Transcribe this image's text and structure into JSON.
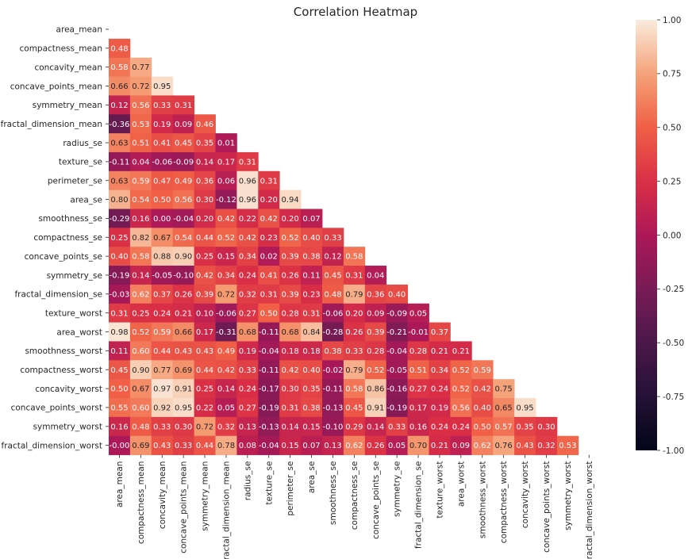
{
  "chart_data": {
    "type": "heatmap",
    "title": "Correlation Heatmap",
    "xlabel": "",
    "ylabel": "",
    "mask": "upper-triangle",
    "labels": [
      "area_mean",
      "compactness_mean",
      "concavity_mean",
      "concave_points_mean",
      "symmetry_mean",
      "fractal_dimension_mean",
      "radius_se",
      "texture_se",
      "perimeter_se",
      "area_se",
      "smoothness_se",
      "compactness_se",
      "concave_points_se",
      "symmetry_se",
      "fractal_dimension_se",
      "texture_worst",
      "area_worst",
      "smoothness_worst",
      "compactness_worst",
      "concavity_worst",
      "concave_points_worst",
      "symmetry_worst",
      "fractal_dimension_worst"
    ],
    "lower_triangle_values": [
      [],
      [
        "0.48"
      ],
      [
        "0.58",
        "0.77"
      ],
      [
        "0.66",
        "0.72",
        "0.95"
      ],
      [
        "0.12",
        "0.56",
        "0.33",
        "0.31"
      ],
      [
        "-0.36",
        "0.53",
        "0.19",
        "0.09",
        "0.46"
      ],
      [
        "0.63",
        "0.51",
        "0.41",
        "0.45",
        "0.35",
        "0.01"
      ],
      [
        "-0.11",
        "0.04",
        "-0.06",
        "-0.09",
        "0.14",
        "0.17",
        "0.31"
      ],
      [
        "0.63",
        "0.59",
        "0.47",
        "0.49",
        "0.36",
        "0.06",
        "0.96",
        "0.31"
      ],
      [
        "0.80",
        "0.54",
        "0.50",
        "0.56",
        "0.30",
        "-0.12",
        "0.96",
        "0.20",
        "0.94"
      ],
      [
        "-0.29",
        "0.16",
        "0.00",
        "-0.04",
        "0.20",
        "0.42",
        "0.22",
        "0.42",
        "0.20",
        "0.07"
      ],
      [
        "0.25",
        "0.82",
        "0.67",
        "0.54",
        "0.44",
        "0.52",
        "0.42",
        "0.23",
        "0.52",
        "0.40",
        "0.33"
      ],
      [
        "0.40",
        "0.58",
        "0.88",
        "0.90",
        "0.25",
        "0.15",
        "0.34",
        "0.02",
        "0.39",
        "0.38",
        "0.12",
        "0.58"
      ],
      [
        "-0.19",
        "0.14",
        "-0.05",
        "-0.10",
        "0.42",
        "0.34",
        "0.24",
        "0.41",
        "0.26",
        "0.11",
        "0.45",
        "0.31",
        "0.04"
      ],
      [
        "-0.03",
        "0.62",
        "0.37",
        "0.26",
        "0.39",
        "0.72",
        "0.32",
        "0.31",
        "0.39",
        "0.23",
        "0.48",
        "0.79",
        "0.36",
        "0.40"
      ],
      [
        "0.31",
        "0.25",
        "0.24",
        "0.21",
        "0.10",
        "-0.06",
        "0.27",
        "0.50",
        "0.28",
        "0.31",
        "-0.06",
        "0.20",
        "0.09",
        "-0.09",
        "0.05"
      ],
      [
        "0.98",
        "0.52",
        "0.59",
        "0.66",
        "0.17",
        "-0.31",
        "0.68",
        "-0.11",
        "0.68",
        "0.84",
        "-0.28",
        "0.26",
        "0.39",
        "-0.21",
        "-0.01",
        "0.37"
      ],
      [
        "0.11",
        "0.60",
        "0.44",
        "0.43",
        "0.43",
        "0.49",
        "0.19",
        "-0.04",
        "0.18",
        "0.18",
        "0.38",
        "0.33",
        "0.28",
        "-0.04",
        "0.28",
        "0.21",
        "0.21"
      ],
      [
        "0.45",
        "0.90",
        "0.77",
        "0.69",
        "0.44",
        "0.42",
        "0.33",
        "-0.11",
        "0.42",
        "0.40",
        "-0.02",
        "0.79",
        "0.52",
        "-0.05",
        "0.51",
        "0.34",
        "0.52",
        "0.59"
      ],
      [
        "0.50",
        "0.67",
        "0.97",
        "0.91",
        "0.25",
        "0.14",
        "0.24",
        "-0.17",
        "0.30",
        "0.35",
        "-0.11",
        "0.58",
        "0.86",
        "-0.16",
        "0.27",
        "0.24",
        "0.52",
        "0.42",
        "0.75"
      ],
      [
        "0.55",
        "0.60",
        "0.92",
        "0.95",
        "0.22",
        "0.05",
        "0.27",
        "-0.19",
        "0.31",
        "0.38",
        "-0.13",
        "0.45",
        "0.91",
        "-0.19",
        "0.17",
        "0.19",
        "0.56",
        "0.40",
        "0.65",
        "0.95"
      ],
      [
        "0.16",
        "0.48",
        "0.33",
        "0.30",
        "0.72",
        "0.32",
        "0.13",
        "-0.13",
        "0.14",
        "0.15",
        "-0.10",
        "0.29",
        "0.14",
        "0.33",
        "0.16",
        "0.24",
        "0.24",
        "0.50",
        "0.57",
        "0.35",
        "0.30"
      ],
      [
        "-0.00",
        "0.69",
        "0.43",
        "0.33",
        "0.44",
        "0.78",
        "0.08",
        "-0.04",
        "0.15",
        "0.07",
        "0.13",
        "0.62",
        "0.26",
        "0.05",
        "0.70",
        "0.21",
        "0.09",
        "0.62",
        "0.76",
        "0.43",
        "0.32",
        "0.53"
      ]
    ],
    "colorbar": {
      "min": -1.0,
      "max": 1.0,
      "ticks": [
        "-1.00",
        "-0.75",
        "-0.50",
        "-0.25",
        "0.00",
        "0.25",
        "0.50",
        "0.75",
        "1.00"
      ]
    },
    "colormap": "rocket",
    "colors": {
      "text_light": "#ffffff",
      "text_dark": "#262626",
      "axis": "#262626"
    }
  }
}
